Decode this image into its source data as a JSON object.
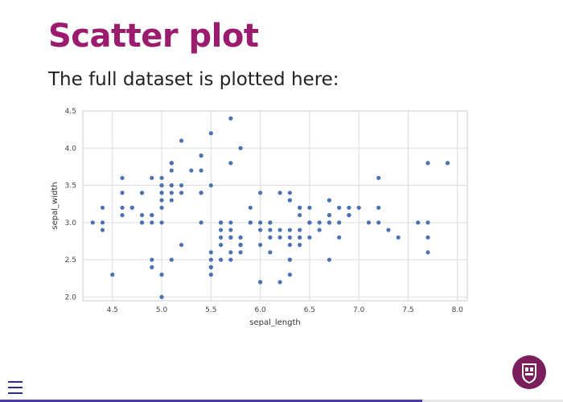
{
  "slide": {
    "title": "Scatter plot",
    "text": "The full dataset is plotted here:"
  },
  "navigation": {
    "menu_icon": "hamburger-menu-icon",
    "progress": 0.75
  },
  "logo": {
    "icon": "university-crest-logo",
    "color": "#7a1f5c"
  },
  "colors": {
    "title": "#9b1b6e",
    "points": "#4c72b0",
    "progress": "#4a3aa8"
  },
  "chart_data": {
    "type": "scatter",
    "title": "",
    "xlabel": "sepal_length",
    "ylabel": "sepal_width",
    "xlim": [
      4.2,
      8.1
    ],
    "ylim": [
      1.95,
      4.5
    ],
    "xticks": [
      "4.5",
      "5.0",
      "5.5",
      "6.0",
      "6.5",
      "7.0",
      "7.5",
      "8.0"
    ],
    "yticks": [
      "2.0",
      "2.5",
      "3.0",
      "3.5",
      "4.0",
      "4.5"
    ],
    "grid": true,
    "series": [
      {
        "color": "#4c72b0",
        "points": [
          [
            5.1,
            3.5
          ],
          [
            4.9,
            3.0
          ],
          [
            4.7,
            3.2
          ],
          [
            4.6,
            3.1
          ],
          [
            5.0,
            3.6
          ],
          [
            5.4,
            3.9
          ],
          [
            4.6,
            3.4
          ],
          [
            5.0,
            3.4
          ],
          [
            4.4,
            2.9
          ],
          [
            4.9,
            3.1
          ],
          [
            5.4,
            3.7
          ],
          [
            4.8,
            3.4
          ],
          [
            4.8,
            3.0
          ],
          [
            4.3,
            3.0
          ],
          [
            5.8,
            4.0
          ],
          [
            5.7,
            4.4
          ],
          [
            5.4,
            3.9
          ],
          [
            5.1,
            3.5
          ],
          [
            5.7,
            3.8
          ],
          [
            5.1,
            3.8
          ],
          [
            5.4,
            3.4
          ],
          [
            5.1,
            3.7
          ],
          [
            4.6,
            3.6
          ],
          [
            5.1,
            3.3
          ],
          [
            4.8,
            3.4
          ],
          [
            5.0,
            3.0
          ],
          [
            5.0,
            3.4
          ],
          [
            5.2,
            3.5
          ],
          [
            5.2,
            3.4
          ],
          [
            4.7,
            3.2
          ],
          [
            4.8,
            3.1
          ],
          [
            5.4,
            3.4
          ],
          [
            5.2,
            4.1
          ],
          [
            5.5,
            4.2
          ],
          [
            4.9,
            3.1
          ],
          [
            5.0,
            3.2
          ],
          [
            5.5,
            3.5
          ],
          [
            4.9,
            3.6
          ],
          [
            4.4,
            3.0
          ],
          [
            5.1,
            3.4
          ],
          [
            5.0,
            3.5
          ],
          [
            4.5,
            2.3
          ],
          [
            4.4,
            3.2
          ],
          [
            5.0,
            3.5
          ],
          [
            5.1,
            3.8
          ],
          [
            4.8,
            3.0
          ],
          [
            5.1,
            3.8
          ],
          [
            4.6,
            3.2
          ],
          [
            5.3,
            3.7
          ],
          [
            5.0,
            3.3
          ],
          [
            7.0,
            3.2
          ],
          [
            6.4,
            3.2
          ],
          [
            6.9,
            3.1
          ],
          [
            5.5,
            2.3
          ],
          [
            6.5,
            2.8
          ],
          [
            5.7,
            2.8
          ],
          [
            6.3,
            3.3
          ],
          [
            4.9,
            2.4
          ],
          [
            6.6,
            2.9
          ],
          [
            5.2,
            2.7
          ],
          [
            5.0,
            2.0
          ],
          [
            5.9,
            3.0
          ],
          [
            6.0,
            2.2
          ],
          [
            6.1,
            2.9
          ],
          [
            5.6,
            2.9
          ],
          [
            6.7,
            3.1
          ],
          [
            5.6,
            3.0
          ],
          [
            5.8,
            2.7
          ],
          [
            6.2,
            2.2
          ],
          [
            5.6,
            2.5
          ],
          [
            5.9,
            3.2
          ],
          [
            6.1,
            2.8
          ],
          [
            6.3,
            2.5
          ],
          [
            6.1,
            2.8
          ],
          [
            6.4,
            2.9
          ],
          [
            6.6,
            3.0
          ],
          [
            6.8,
            2.8
          ],
          [
            6.7,
            3.0
          ],
          [
            6.0,
            2.9
          ],
          [
            5.7,
            2.6
          ],
          [
            5.5,
            2.4
          ],
          [
            5.5,
            2.4
          ],
          [
            5.8,
            2.7
          ],
          [
            6.0,
            2.7
          ],
          [
            5.4,
            3.0
          ],
          [
            6.0,
            3.4
          ],
          [
            6.7,
            3.1
          ],
          [
            6.3,
            2.3
          ],
          [
            5.6,
            3.0
          ],
          [
            5.5,
            2.5
          ],
          [
            5.5,
            2.6
          ],
          [
            6.1,
            3.0
          ],
          [
            5.8,
            2.6
          ],
          [
            5.0,
            2.3
          ],
          [
            5.6,
            2.7
          ],
          [
            5.7,
            3.0
          ],
          [
            5.7,
            2.9
          ],
          [
            6.2,
            2.9
          ],
          [
            5.1,
            2.5
          ],
          [
            5.7,
            2.8
          ],
          [
            6.3,
            3.3
          ],
          [
            5.8,
            2.7
          ],
          [
            7.1,
            3.0
          ],
          [
            6.3,
            2.9
          ],
          [
            6.5,
            3.0
          ],
          [
            7.6,
            3.0
          ],
          [
            4.9,
            2.5
          ],
          [
            7.3,
            2.9
          ],
          [
            6.7,
            2.5
          ],
          [
            7.2,
            3.6
          ],
          [
            6.5,
            3.2
          ],
          [
            6.4,
            2.7
          ],
          [
            6.8,
            3.0
          ],
          [
            5.7,
            2.5
          ],
          [
            5.8,
            2.8
          ],
          [
            6.4,
            3.2
          ],
          [
            6.5,
            3.0
          ],
          [
            7.7,
            3.8
          ],
          [
            7.7,
            2.6
          ],
          [
            6.0,
            2.2
          ],
          [
            6.9,
            3.2
          ],
          [
            5.6,
            2.8
          ],
          [
            7.7,
            2.8
          ],
          [
            6.3,
            2.7
          ],
          [
            6.7,
            3.3
          ],
          [
            7.2,
            3.2
          ],
          [
            6.2,
            2.8
          ],
          [
            6.1,
            3.0
          ],
          [
            6.4,
            2.8
          ],
          [
            7.2,
            3.0
          ],
          [
            7.4,
            2.8
          ],
          [
            7.9,
            3.8
          ],
          [
            6.4,
            2.8
          ],
          [
            6.3,
            2.8
          ],
          [
            6.1,
            2.6
          ],
          [
            7.7,
            3.0
          ],
          [
            6.3,
            3.4
          ],
          [
            6.4,
            3.1
          ],
          [
            6.0,
            3.0
          ],
          [
            6.9,
            3.1
          ],
          [
            6.7,
            3.1
          ],
          [
            6.9,
            3.1
          ],
          [
            5.8,
            2.7
          ],
          [
            6.8,
            3.2
          ],
          [
            6.7,
            3.3
          ],
          [
            6.7,
            3.0
          ],
          [
            6.3,
            2.5
          ],
          [
            6.5,
            3.0
          ],
          [
            6.2,
            3.4
          ],
          [
            5.9,
            3.0
          ]
        ]
      }
    ]
  }
}
